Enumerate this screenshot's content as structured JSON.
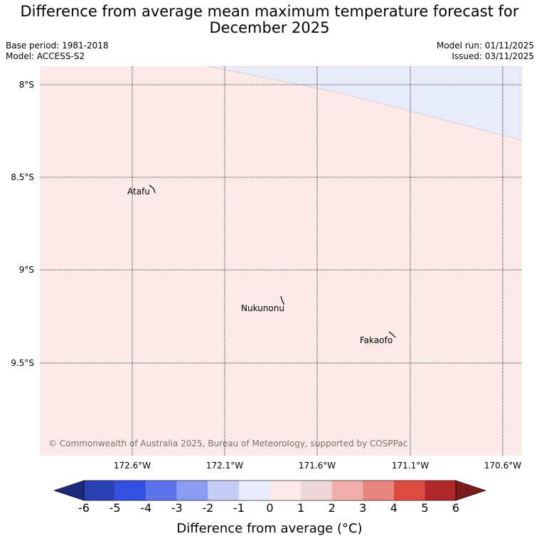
{
  "title": "Difference from average mean maximum temperature forecast for December 2025",
  "title_line1": "Difference from average mean maximum temperature forecast for",
  "title_line2": "December 2025",
  "base_period": "Base period: 1981-2018",
  "model": "Model: ACCESS-S2",
  "model_run": "Model run: 01/11/2025",
  "issued": "Issued: 03/11/2025",
  "map": {
    "lat_labels": [
      "8°S",
      "8.5°S",
      "9°S",
      "9.5°S"
    ],
    "lon_labels": [
      "172.6°W",
      "172.1°W",
      "171.6°W",
      "171.1°W",
      "170.6°W"
    ],
    "places": [
      {
        "name": "Atafu",
        "lon": -172.5,
        "lat": -8.58
      },
      {
        "name": "Nukunonu",
        "lon": -171.8,
        "lat": -9.17
      },
      {
        "name": "Fakaofo",
        "lon": -171.2,
        "lat": -9.37
      }
    ],
    "copyright": "© Commonwealth of Australia 2025, Bureau of Meteorology, supported by COSPPac",
    "anomaly_regions": [
      {
        "category": "0 to 1",
        "color": "#fceae8",
        "area": "most of map"
      },
      {
        "category": "-1 to 0",
        "color": "#e8ecfa",
        "area": "north-east corner"
      }
    ]
  },
  "colorbar": {
    "label": "Difference from average (°C)",
    "ticks": [
      "-6",
      "-5",
      "-4",
      "-3",
      "-2",
      "-1",
      "0",
      "1",
      "2",
      "3",
      "4",
      "5",
      "6"
    ],
    "colors": [
      "#1c2a7c",
      "#2a3fb4",
      "#3350e0",
      "#5b72e8",
      "#8a9df0",
      "#c4cbf5",
      "#e8ecfa",
      "#fceae8",
      "#ecd6d6",
      "#f0aea8",
      "#e88580",
      "#dc4a40",
      "#b0282a",
      "#7a1c1c"
    ]
  }
}
